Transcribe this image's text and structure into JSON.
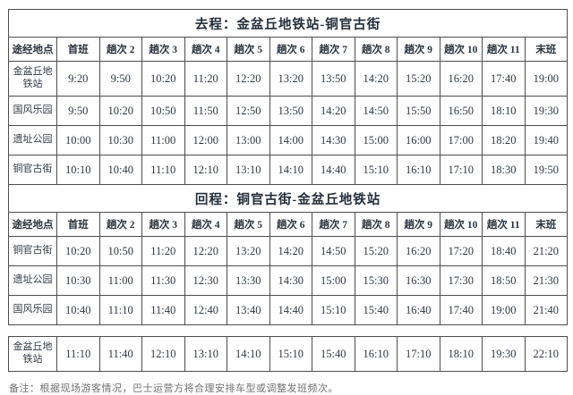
{
  "columns": [
    "途经地点",
    "首班",
    "趟次 2",
    "趟次 3",
    "趟次 4",
    "趟次 5",
    "趟次 6",
    "趟次 7",
    "趟次 8",
    "趟次 9",
    "趟次 10",
    "趟次 11",
    "末班"
  ],
  "sections": [
    {
      "title": "去程：金盆丘地铁站-铜官古街",
      "rows": [
        {
          "station": "金盆丘地铁站",
          "times": [
            "9:20",
            "9:50",
            "10:20",
            "11:20",
            "12:20",
            "13:20",
            "13:50",
            "14:20",
            "15:20",
            "16:20",
            "17:40",
            "19:00"
          ]
        },
        {
          "station": "国风乐园",
          "times": [
            "9:50",
            "10:20",
            "10:50",
            "11:50",
            "12:50",
            "13:50",
            "14:20",
            "14:50",
            "15:50",
            "16:50",
            "18:10",
            "19:30"
          ]
        },
        {
          "station": "遗址公园",
          "times": [
            "10:00",
            "10:30",
            "11:00",
            "12:00",
            "13:00",
            "14:00",
            "14:30",
            "15:00",
            "16:00",
            "17:00",
            "18:20",
            "19:40"
          ]
        },
        {
          "station": "铜官古街",
          "times": [
            "10:10",
            "10:40",
            "11:10",
            "12:10",
            "13:10",
            "14:10",
            "14:40",
            "15:10",
            "16:10",
            "17:10",
            "18:30",
            "19:50"
          ]
        }
      ]
    },
    {
      "title": "回程：铜官古街-金盆丘地铁站",
      "rows": [
        {
          "station": "铜官古街",
          "times": [
            "10:20",
            "10:50",
            "11:20",
            "12:20",
            "13:20",
            "14:20",
            "14:50",
            "15:20",
            "16:20",
            "17:20",
            "18:40",
            "21:20"
          ]
        },
        {
          "station": "遗址公园",
          "times": [
            "10:30",
            "11:00",
            "11:30",
            "12:30",
            "13:30",
            "14:30",
            "15:00",
            "15:30",
            "16:30",
            "17:30",
            "18:50",
            "21:30"
          ]
        },
        {
          "station": "国风乐园",
          "times": [
            "10:40",
            "11:10",
            "11:40",
            "12:40",
            "13:40",
            "14:40",
            "15:10",
            "15:40",
            "16:40",
            "17:40",
            "19:00",
            "21:40"
          ]
        }
      ]
    }
  ],
  "detached_row": {
    "station": "金盆丘地铁站",
    "times": [
      "11:10",
      "11:40",
      "12:10",
      "13:10",
      "14:10",
      "15:10",
      "15:40",
      "16:10",
      "17:10",
      "18:10",
      "19:30",
      "22:10"
    ]
  },
  "note": "备注：根据现场游客情况，巴士运营方将合理安排车型或调整发班频次。"
}
